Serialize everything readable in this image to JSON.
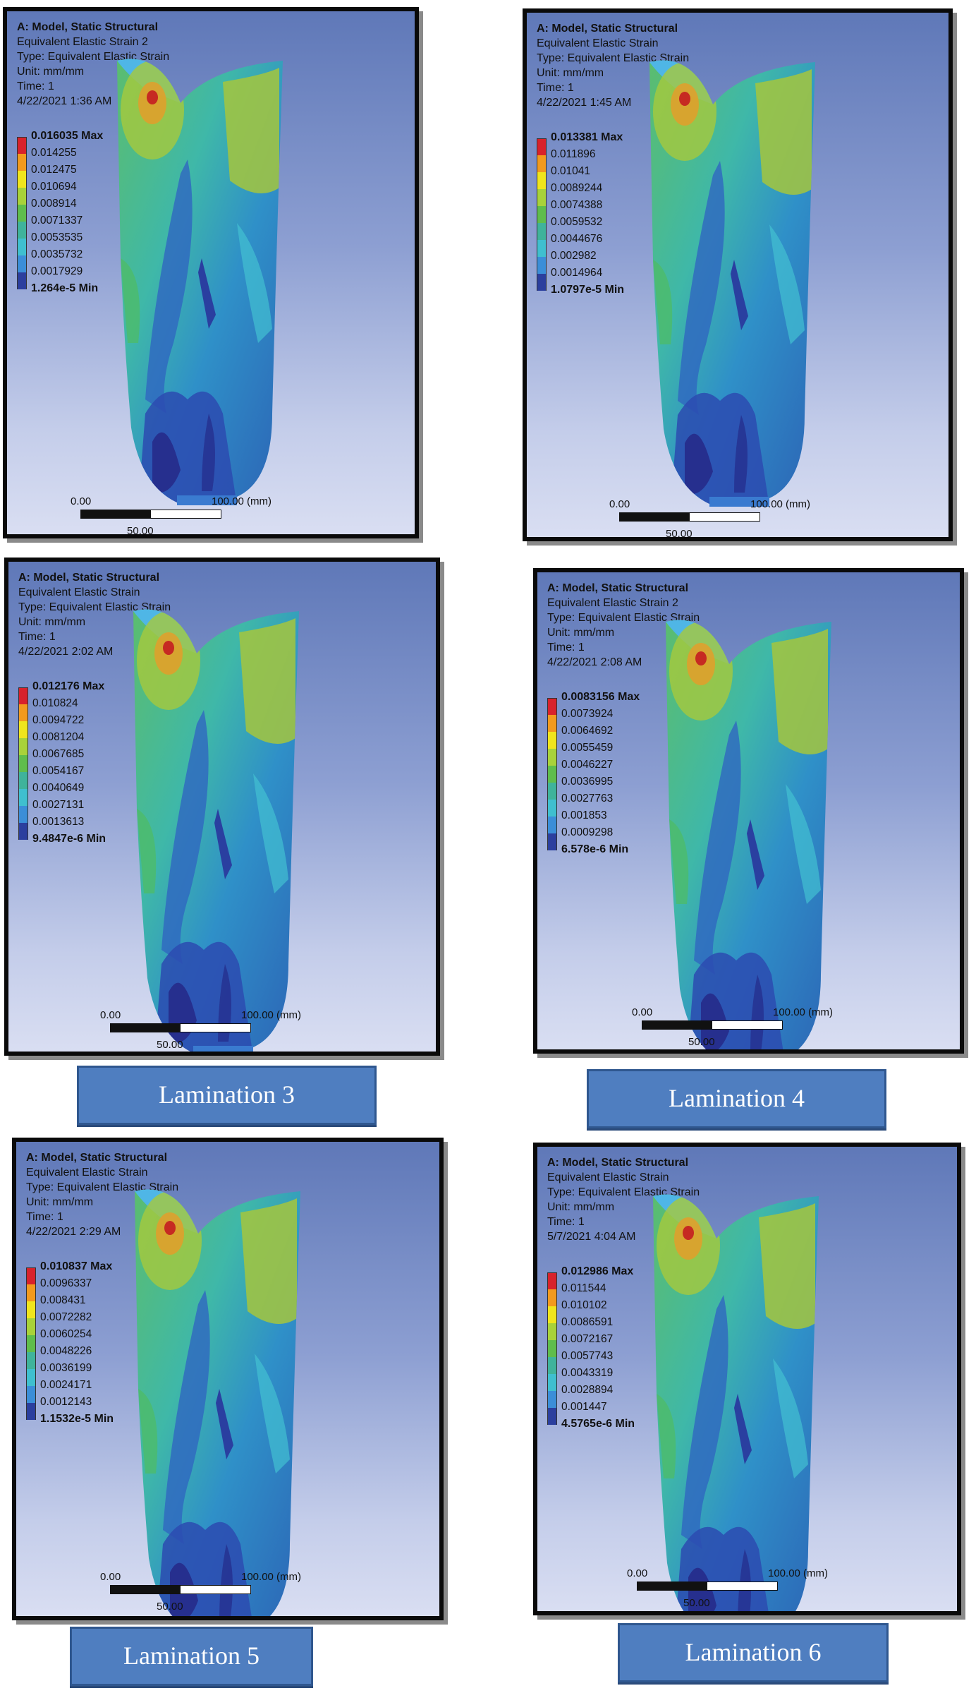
{
  "panels": [
    {
      "model": "A: Model, Static Structural",
      "result": "Equivalent Elastic Strain 2",
      "type": "Type: Equivalent Elastic Strain",
      "unit": "Unit: mm/mm",
      "time": "Time: 1",
      "date": "4/22/2021 1:36 AM",
      "legend": [
        "0.016035 Max",
        "0.014255",
        "0.012475",
        "0.010694",
        "0.008914",
        "0.0071337",
        "0.0053535",
        "0.0035732",
        "0.0017929"
      ],
      "legend_min": "1.264e-5 Min",
      "scale": {
        "zero": "0.00",
        "max": "100.00 (mm)",
        "mid": "50.00"
      }
    },
    {
      "model": "A: Model, Static Structural",
      "result": "Equivalent Elastic Strain",
      "type": "Type: Equivalent Elastic Strain",
      "unit": "Unit: mm/mm",
      "time": "Time: 1",
      "date": "4/22/2021 1:45 AM",
      "legend": [
        "0.013381 Max",
        "0.011896",
        "0.01041",
        "0.0089244",
        "0.0074388",
        "0.0059532",
        "0.0044676",
        "0.002982",
        "0.0014964"
      ],
      "legend_min": "1.0797e-5 Min",
      "scale": {
        "zero": "0.00",
        "max": "100.00 (mm)",
        "mid": "50.00"
      }
    },
    {
      "model": "A: Model, Static Structural",
      "result": "Equivalent Elastic Strain",
      "type": "Type: Equivalent Elastic Strain",
      "unit": "Unit: mm/mm",
      "time": "Time: 1",
      "date": "4/22/2021 2:02 AM",
      "legend": [
        "0.012176 Max",
        "0.010824",
        "0.0094722",
        "0.0081204",
        "0.0067685",
        "0.0054167",
        "0.0040649",
        "0.0027131",
        "0.0013613"
      ],
      "legend_min": "9.4847e-6 Min",
      "scale": {
        "zero": "0.00",
        "max": "100.00 (mm)",
        "mid": "50.00"
      }
    },
    {
      "model": "A: Model, Static Structural",
      "result": "Equivalent Elastic Strain 2",
      "type": "Type: Equivalent Elastic Strain",
      "unit": "Unit: mm/mm",
      "time": "Time: 1",
      "date": "4/22/2021 2:08 AM",
      "legend": [
        "0.0083156 Max",
        "0.0073924",
        "0.0064692",
        "0.0055459",
        "0.0046227",
        "0.0036995",
        "0.0027763",
        "0.001853",
        "0.0009298"
      ],
      "legend_min": "6.578e-6 Min",
      "scale": {
        "zero": "0.00",
        "max": "100.00 (mm)",
        "mid": "50.00"
      }
    },
    {
      "model": "A: Model, Static Structural",
      "result": "Equivalent Elastic Strain",
      "type": "Type: Equivalent Elastic Strain",
      "unit": "Unit: mm/mm",
      "time": "Time: 1",
      "date": "4/22/2021 2:29 AM",
      "legend": [
        "0.010837 Max",
        "0.0096337",
        "0.008431",
        "0.0072282",
        "0.0060254",
        "0.0048226",
        "0.0036199",
        "0.0024171",
        "0.0012143"
      ],
      "legend_min": "1.1532e-5 Min",
      "scale": {
        "zero": "0.00",
        "max": "100.00 (mm)",
        "mid": "50.00"
      }
    },
    {
      "model": "A: Model, Static Structural",
      "result": "Equivalent Elastic Strain",
      "type": "Type: Equivalent Elastic Strain",
      "unit": "Unit: mm/mm",
      "time": "Time: 1",
      "date": "5/7/2021 4:04 AM",
      "legend": [
        "0.012986 Max",
        "0.011544",
        "0.010102",
        "0.0086591",
        "0.0072167",
        "0.0057743",
        "0.0043319",
        "0.0028894",
        "0.001447"
      ],
      "legend_min": "4.5765e-6 Min",
      "scale": {
        "zero": "0.00",
        "max": "100.00 (mm)",
        "mid": "50.00"
      }
    }
  ],
  "labels": [
    "Lamination 3",
    "Lamination 4",
    "Lamination 5",
    "Lamination 6"
  ],
  "legend_colors": [
    "#d8222b",
    "#f29a1e",
    "#f0e51d",
    "#a8d23a",
    "#5fbd4c",
    "#3fb39b",
    "#3fbfcf",
    "#3b8ed8",
    "#2b3f9e"
  ]
}
